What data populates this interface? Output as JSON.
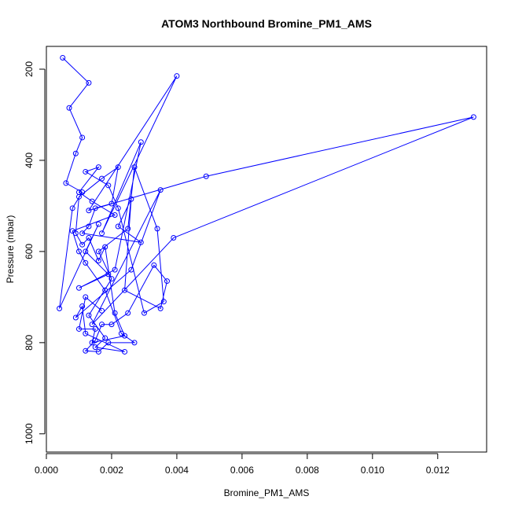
{
  "chart_data": {
    "type": "line",
    "title": "ATOM3 Northbound Bromine_PM1_AMS",
    "xlabel": "Bromine_PM1_AMS",
    "ylabel": "Pressure (mbar)",
    "xlim": [
      0.0,
      0.0135
    ],
    "ylim": [
      1040,
      150
    ],
    "y_reversed": true,
    "x_ticks": [
      "0.000",
      "0.002",
      "0.004",
      "0.006",
      "0.008",
      "0.010",
      "0.012"
    ],
    "y_ticks": [
      "200",
      "400",
      "600",
      "800",
      "1000"
    ],
    "grid": false,
    "markers": "open-circle",
    "series": [
      {
        "color": "#0000ff",
        "points": [
          [
            0.0005,
            175
          ],
          [
            0.0013,
            230
          ],
          [
            0.0007,
            285
          ],
          [
            0.0011,
            350
          ],
          [
            0.0009,
            385
          ],
          [
            0.0006,
            450
          ],
          [
            0.0011,
            470
          ],
          [
            0.0008,
            505
          ],
          [
            0.0004,
            725
          ],
          [
            0.0016,
            540
          ],
          [
            0.0012,
            600
          ],
          [
            0.0019,
            650
          ],
          [
            0.001,
            680
          ],
          [
            0.0021,
            640
          ],
          [
            0.0029,
            360
          ],
          [
            0.0017,
            560
          ],
          [
            0.004,
            215
          ],
          [
            0.0013,
            510
          ],
          [
            0.0049,
            435
          ],
          [
            0.0131,
            305
          ],
          [
            0.0039,
            570
          ],
          [
            0.0014,
            760
          ],
          [
            0.0035,
            465
          ],
          [
            0.0026,
            640
          ],
          [
            0.0009,
            745
          ],
          [
            0.0011,
            720
          ],
          [
            0.0012,
            780
          ],
          [
            0.0024,
            820
          ],
          [
            0.0015,
            810
          ],
          [
            0.0018,
            790
          ],
          [
            0.0013,
            740
          ],
          [
            0.002,
            660
          ],
          [
            0.0016,
            600
          ],
          [
            0.0025,
            550
          ],
          [
            0.0027,
            415
          ],
          [
            0.0034,
            550
          ],
          [
            0.0036,
            710
          ],
          [
            0.003,
            735
          ],
          [
            0.0022,
            505
          ],
          [
            0.0019,
            455
          ],
          [
            0.0012,
            425
          ],
          [
            0.0016,
            415
          ],
          [
            0.001,
            470
          ],
          [
            0.0014,
            490
          ],
          [
            0.0021,
            520
          ],
          [
            0.0008,
            555
          ],
          [
            0.001,
            600
          ],
          [
            0.0012,
            625
          ],
          [
            0.0018,
            685
          ],
          [
            0.0023,
            780
          ],
          [
            0.0027,
            800
          ],
          [
            0.0019,
            800
          ],
          [
            0.0016,
            820
          ],
          [
            0.0012,
            818
          ],
          [
            0.0015,
            795
          ],
          [
            0.0017,
            760
          ],
          [
            0.002,
            760
          ],
          [
            0.0025,
            735
          ],
          [
            0.0033,
            630
          ],
          [
            0.0037,
            665
          ],
          [
            0.0035,
            725
          ],
          [
            0.0024,
            685
          ],
          [
            0.0026,
            485
          ],
          [
            0.0022,
            545
          ],
          [
            0.0029,
            580
          ],
          [
            0.0011,
            560
          ],
          [
            0.0013,
            545
          ],
          [
            0.0015,
            505
          ],
          [
            0.002,
            495
          ],
          [
            0.0022,
            415
          ],
          [
            0.0017,
            440
          ],
          [
            0.001,
            480
          ],
          [
            0.0009,
            560
          ],
          [
            0.0011,
            585
          ],
          [
            0.0013,
            570
          ],
          [
            0.0016,
            620
          ],
          [
            0.0018,
            590
          ],
          [
            0.0021,
            735
          ],
          [
            0.0024,
            785
          ],
          [
            0.0014,
            800
          ],
          [
            0.0015,
            770
          ],
          [
            0.001,
            770
          ],
          [
            0.0012,
            700
          ],
          [
            0.0017,
            730
          ]
        ]
      }
    ]
  }
}
